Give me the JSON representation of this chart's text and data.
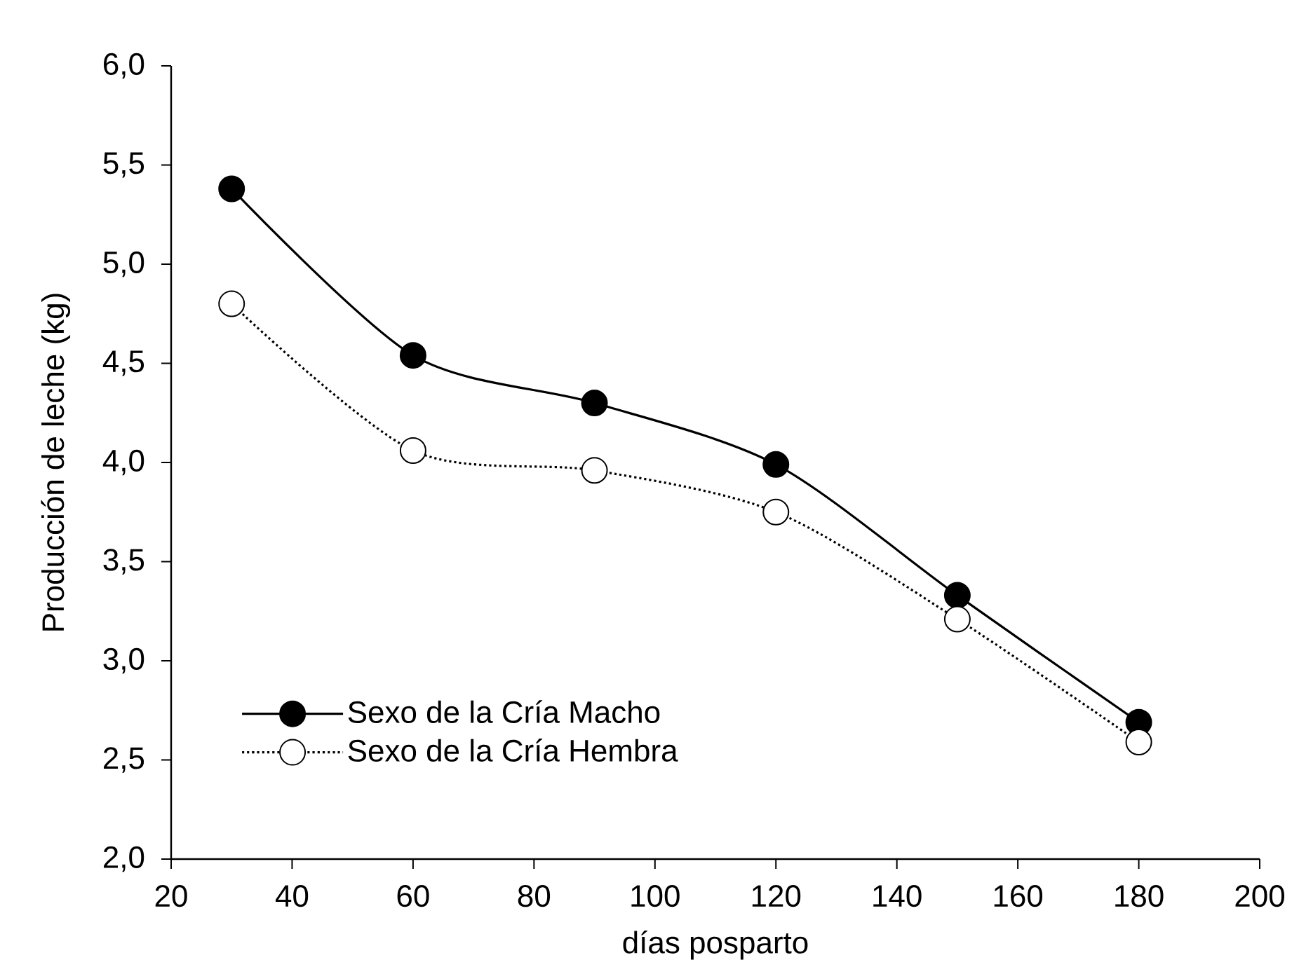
{
  "chart_data": {
    "type": "line",
    "xlabel": "días posparto",
    "ylabel": "Producción de leche (kg)",
    "x": [
      30,
      60,
      90,
      120,
      150,
      180
    ],
    "series": [
      {
        "name": "Sexo de la Cría Macho",
        "color": "#000000",
        "line_style": "solid",
        "values": [
          5.38,
          4.54,
          4.3,
          3.99,
          3.33,
          2.69
        ]
      },
      {
        "name": "Sexo de la Cría Hembra",
        "color": "#000000",
        "line_style": "dotted",
        "values": [
          4.8,
          4.06,
          3.96,
          3.75,
          3.21,
          2.59
        ]
      }
    ],
    "marker": "circle",
    "legend": "bottom left",
    "grid": false,
    "xlim": [
      20,
      200
    ],
    "xticks": [
      20,
      40,
      60,
      80,
      100,
      120,
      140,
      160,
      180,
      200
    ],
    "ylim": [
      2.0,
      6.0
    ],
    "yticks": [
      {
        "value": 2.0,
        "label": "2,0"
      },
      {
        "value": 2.5,
        "label": "2,5"
      },
      {
        "value": 3.0,
        "label": "3,0"
      },
      {
        "value": 3.5,
        "label": "3,5"
      },
      {
        "value": 4.0,
        "label": "4,0"
      },
      {
        "value": 4.5,
        "label": "4,5"
      },
      {
        "value": 5.0,
        "label": "5,0"
      },
      {
        "value": 5.5,
        "label": "5,5"
      },
      {
        "value": 6.0,
        "label": "6,0"
      }
    ]
  }
}
